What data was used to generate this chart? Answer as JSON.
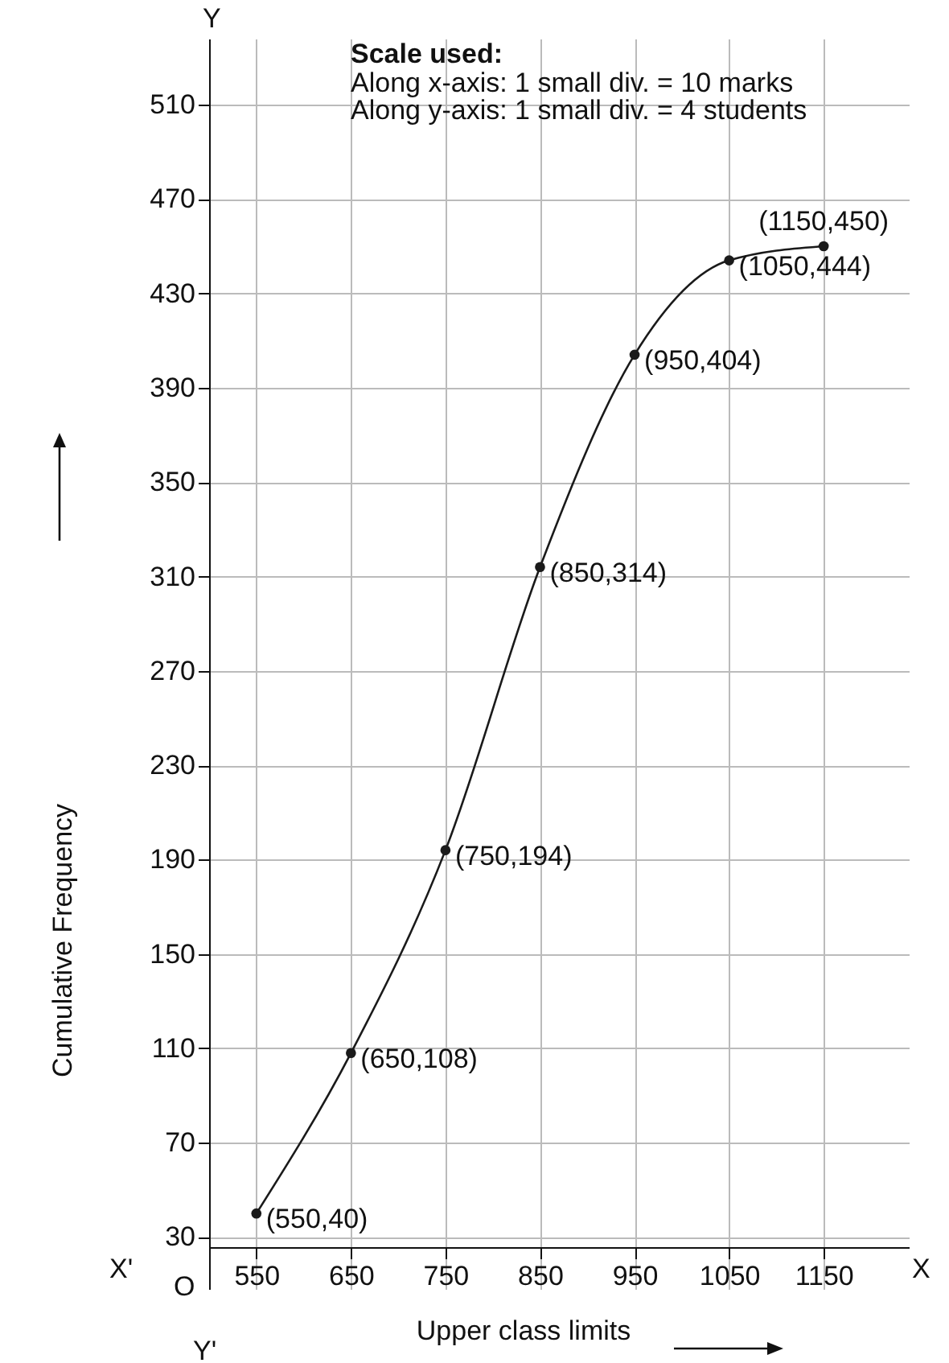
{
  "chart_data": {
    "type": "line",
    "xlabel": "Upper class limits",
    "ylabel": "Cumulative Frequency",
    "x": [
      550,
      650,
      750,
      850,
      950,
      1050,
      1150
    ],
    "series": [
      {
        "color": "#1a1a1a",
        "values": [
          40,
          108,
          194,
          314,
          404,
          444,
          450
        ]
      }
    ],
    "xlim": [
      500,
      1240
    ],
    "xticks": [
      550,
      650,
      750,
      850,
      950,
      1050,
      1150
    ],
    "ylim": [
      8,
      538
    ],
    "yticks": [
      30,
      70,
      110,
      150,
      190,
      230,
      270,
      310,
      350,
      390,
      430,
      470,
      510
    ],
    "grid": true,
    "marker": "circle",
    "line_style": "solid",
    "annotations": [
      "Scale used:",
      "Along x-axis: 1  small div. = 10 marks",
      "Along y-axis: 1  small div. = 4 students",
      "X'",
      "X",
      "Y",
      "Y'",
      "O",
      {
        "text": "(550,40)",
        "x": 550,
        "y": 40
      },
      {
        "text": "(650,108)",
        "x": 650,
        "y": 108
      },
      {
        "text": "(750,194)",
        "x": 750,
        "y": 194
      },
      {
        "text": "(850,314)",
        "x": 850,
        "y": 314
      },
      {
        "text": "(950,404)",
        "x": 950,
        "y": 404
      },
      {
        "text": "(1050,444)",
        "x": 1050,
        "y": 444
      },
      {
        "text": "(1150,450)",
        "x": 1150,
        "y": 450
      }
    ]
  }
}
